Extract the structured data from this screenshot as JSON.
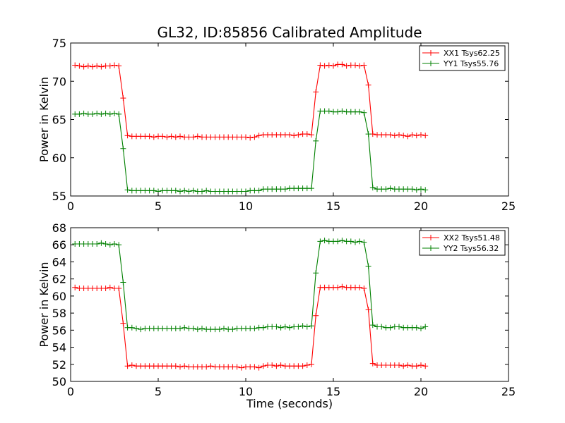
{
  "figure": {
    "title": "GL32, ID:85856 Calibrated Amplitude",
    "xlabel": "Time (seconds)"
  },
  "chart_data": [
    {
      "type": "line",
      "title": "GL32, ID:85856 Calibrated Amplitude",
      "xlabel": "",
      "ylabel": "Power in Kelvin",
      "xlim": [
        0,
        25
      ],
      "ylim": [
        55,
        75
      ],
      "xticks": [
        0,
        5,
        10,
        15,
        20,
        25
      ],
      "yticks": [
        55,
        60,
        65,
        70,
        75
      ],
      "grid": false,
      "legend": "top-right",
      "marker": "+",
      "x": [
        0.25,
        0.5,
        0.75,
        1.0,
        1.25,
        1.5,
        1.75,
        2.0,
        2.25,
        2.5,
        2.75,
        3.0,
        3.25,
        3.5,
        3.75,
        4.0,
        4.25,
        4.5,
        4.75,
        5.0,
        5.25,
        5.5,
        5.75,
        6.0,
        6.25,
        6.5,
        6.75,
        7.0,
        7.25,
        7.5,
        7.75,
        8.0,
        8.25,
        8.5,
        8.75,
        9.0,
        9.25,
        9.5,
        9.75,
        10.0,
        10.25,
        10.5,
        10.75,
        11.0,
        11.25,
        11.5,
        11.75,
        12.0,
        12.25,
        12.5,
        12.75,
        13.0,
        13.25,
        13.5,
        13.75,
        14.0,
        14.25,
        14.5,
        14.75,
        15.0,
        15.25,
        15.5,
        15.75,
        16.0,
        16.25,
        16.5,
        16.75,
        17.0,
        17.25,
        17.5,
        17.75,
        18.0,
        18.25,
        18.5,
        18.75,
        19.0,
        19.25,
        19.5,
        19.75,
        20.0,
        20.25
      ],
      "series": [
        {
          "name": "XX1 Tsys62.25",
          "color": "#ff0000",
          "values": [
            72.1,
            72.0,
            71.9,
            72.0,
            71.9,
            72.0,
            71.9,
            72.0,
            72.0,
            72.1,
            72.0,
            67.8,
            62.9,
            62.8,
            62.8,
            62.8,
            62.8,
            62.8,
            62.7,
            62.8,
            62.8,
            62.7,
            62.8,
            62.7,
            62.8,
            62.7,
            62.7,
            62.7,
            62.8,
            62.7,
            62.7,
            62.7,
            62.7,
            62.7,
            62.7,
            62.7,
            62.7,
            62.7,
            62.7,
            62.7,
            62.6,
            62.7,
            62.9,
            63.0,
            63.0,
            63.0,
            63.0,
            63.0,
            63.0,
            63.0,
            62.9,
            63.0,
            63.1,
            63.1,
            63.0,
            68.6,
            72.1,
            72.0,
            72.1,
            72.0,
            72.2,
            72.2,
            72.0,
            72.1,
            72.1,
            72.0,
            72.1,
            69.5,
            63.1,
            63.0,
            63.0,
            63.0,
            63.0,
            62.9,
            63.0,
            62.9,
            62.8,
            63.0,
            62.9,
            63.0,
            62.9
          ]
        },
        {
          "name": "YY1 Tsys55.76",
          "color": "#008000",
          "values": [
            65.7,
            65.7,
            65.8,
            65.7,
            65.7,
            65.8,
            65.7,
            65.8,
            65.7,
            65.8,
            65.7,
            61.2,
            55.8,
            55.7,
            55.7,
            55.7,
            55.7,
            55.7,
            55.7,
            55.6,
            55.7,
            55.7,
            55.7,
            55.7,
            55.6,
            55.7,
            55.6,
            55.7,
            55.6,
            55.6,
            55.7,
            55.6,
            55.6,
            55.6,
            55.6,
            55.6,
            55.6,
            55.6,
            55.6,
            55.6,
            55.7,
            55.7,
            55.7,
            55.9,
            55.9,
            55.9,
            55.9,
            55.9,
            55.9,
            56.0,
            56.0,
            56.0,
            56.0,
            56.0,
            56.0,
            62.2,
            66.1,
            66.1,
            66.1,
            66.0,
            66.0,
            66.1,
            66.0,
            66.0,
            66.0,
            66.0,
            65.9,
            63.1,
            56.1,
            55.9,
            55.9,
            55.9,
            56.0,
            55.9,
            55.9,
            55.9,
            55.9,
            55.9,
            55.8,
            55.9,
            55.8
          ]
        }
      ]
    },
    {
      "type": "line",
      "title": "",
      "xlabel": "Time (seconds)",
      "ylabel": "Power in Kelvin",
      "xlim": [
        0,
        25
      ],
      "ylim": [
        50,
        68
      ],
      "xticks": [
        0,
        5,
        10,
        15,
        20,
        25
      ],
      "yticks": [
        50,
        52,
        54,
        56,
        58,
        60,
        62,
        64,
        66,
        68
      ],
      "grid": false,
      "legend": "top-right",
      "marker": "+",
      "x": [
        0.25,
        0.5,
        0.75,
        1.0,
        1.25,
        1.5,
        1.75,
        2.0,
        2.25,
        2.5,
        2.75,
        3.0,
        3.25,
        3.5,
        3.75,
        4.0,
        4.25,
        4.5,
        4.75,
        5.0,
        5.25,
        5.5,
        5.75,
        6.0,
        6.25,
        6.5,
        6.75,
        7.0,
        7.25,
        7.5,
        7.75,
        8.0,
        8.25,
        8.5,
        8.75,
        9.0,
        9.25,
        9.5,
        9.75,
        10.0,
        10.25,
        10.5,
        10.75,
        11.0,
        11.25,
        11.5,
        11.75,
        12.0,
        12.25,
        12.5,
        12.75,
        13.0,
        13.25,
        13.5,
        13.75,
        14.0,
        14.25,
        14.5,
        14.75,
        15.0,
        15.25,
        15.5,
        15.75,
        16.0,
        16.25,
        16.5,
        16.75,
        17.0,
        17.25,
        17.5,
        17.75,
        18.0,
        18.25,
        18.5,
        18.75,
        19.0,
        19.25,
        19.5,
        19.75,
        20.0,
        20.25
      ],
      "series": [
        {
          "name": "XX2 Tsys51.48",
          "color": "#ff0000",
          "values": [
            61.0,
            60.9,
            60.9,
            60.9,
            60.9,
            60.9,
            60.9,
            60.9,
            61.0,
            60.9,
            60.9,
            56.8,
            51.8,
            51.9,
            51.8,
            51.8,
            51.8,
            51.8,
            51.8,
            51.8,
            51.8,
            51.8,
            51.8,
            51.8,
            51.7,
            51.8,
            51.7,
            51.7,
            51.7,
            51.7,
            51.7,
            51.8,
            51.7,
            51.7,
            51.7,
            51.7,
            51.7,
            51.7,
            51.6,
            51.7,
            51.7,
            51.7,
            51.6,
            51.8,
            51.9,
            51.9,
            51.8,
            51.9,
            51.8,
            51.8,
            51.8,
            51.8,
            51.8,
            51.9,
            52.0,
            57.7,
            61.0,
            61.0,
            61.0,
            61.0,
            61.0,
            61.1,
            61.0,
            61.0,
            61.0,
            61.0,
            60.9,
            58.4,
            52.1,
            51.9,
            51.9,
            51.9,
            51.9,
            51.9,
            51.9,
            51.8,
            51.9,
            51.8,
            51.8,
            51.9,
            51.8
          ]
        },
        {
          "name": "YY2 Tsys56.32",
          "color": "#008000",
          "values": [
            66.1,
            66.1,
            66.1,
            66.1,
            66.1,
            66.1,
            66.2,
            66.1,
            66.0,
            66.1,
            66.0,
            61.6,
            56.3,
            56.3,
            56.2,
            56.1,
            56.2,
            56.2,
            56.2,
            56.2,
            56.2,
            56.2,
            56.2,
            56.2,
            56.2,
            56.3,
            56.2,
            56.2,
            56.1,
            56.2,
            56.1,
            56.1,
            56.1,
            56.1,
            56.2,
            56.1,
            56.1,
            56.2,
            56.2,
            56.2,
            56.2,
            56.2,
            56.3,
            56.3,
            56.4,
            56.4,
            56.4,
            56.3,
            56.4,
            56.3,
            56.4,
            56.4,
            56.5,
            56.4,
            56.5,
            62.7,
            66.4,
            66.5,
            66.4,
            66.4,
            66.4,
            66.5,
            66.4,
            66.4,
            66.3,
            66.4,
            66.3,
            63.5,
            56.6,
            56.4,
            56.4,
            56.3,
            56.3,
            56.4,
            56.4,
            56.3,
            56.3,
            56.3,
            56.3,
            56.2,
            56.4
          ]
        }
      ]
    }
  ]
}
